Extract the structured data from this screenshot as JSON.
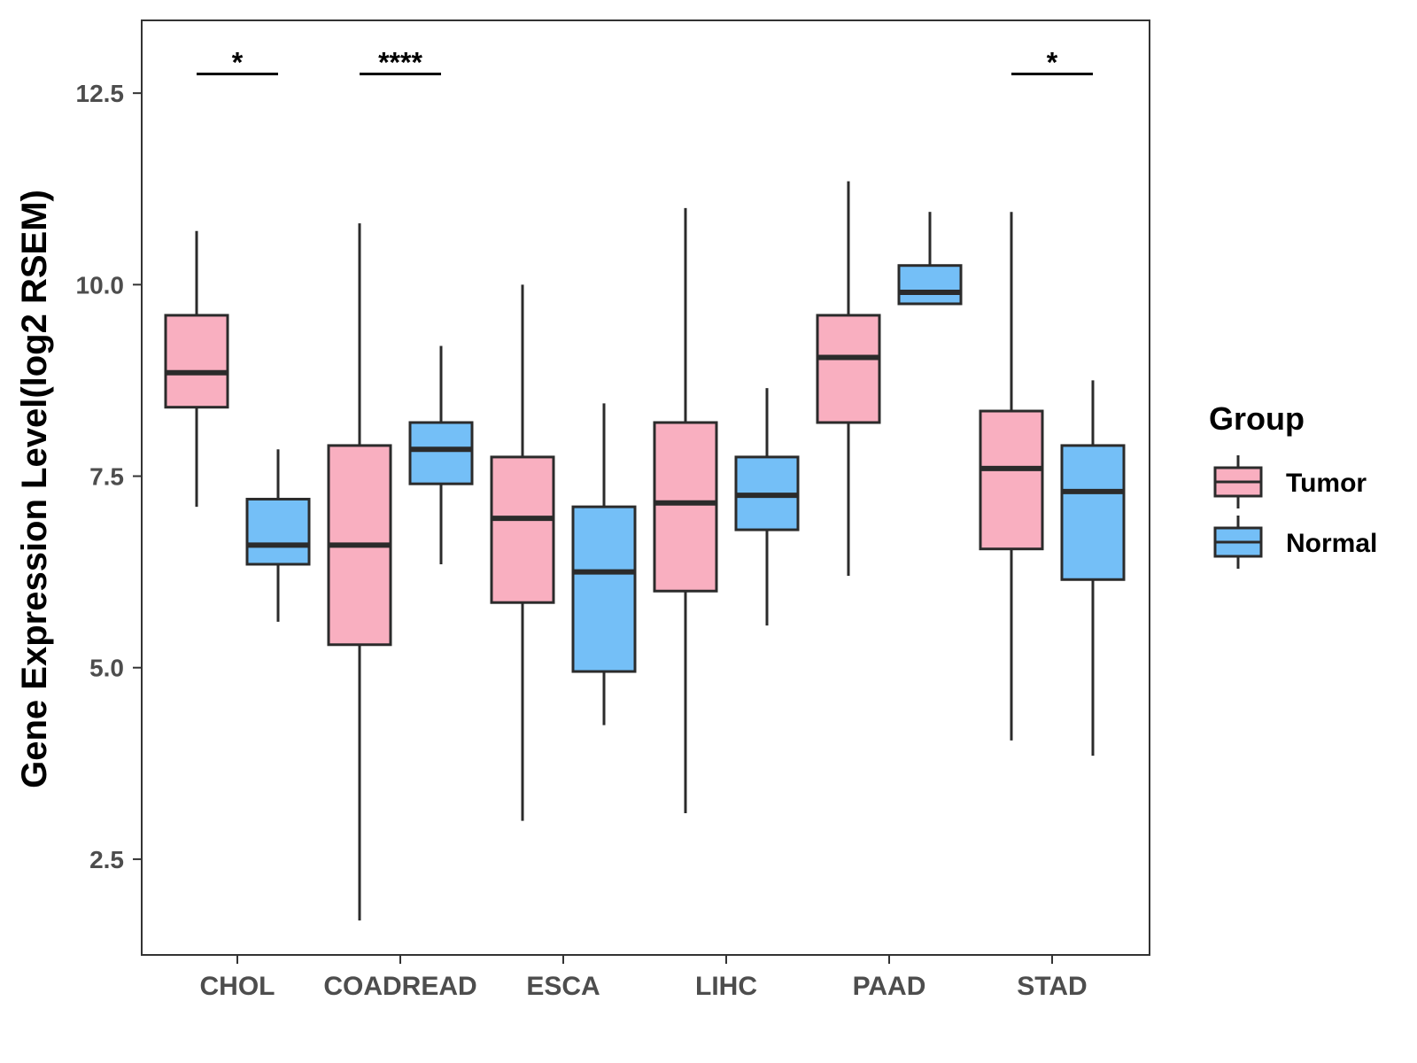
{
  "chart_data": {
    "type": "boxplot",
    "title": "",
    "xlabel": "",
    "ylabel": "Gene Expression Level(log2 RSEM)",
    "ylim": [
      1.25,
      13.45
    ],
    "yticks": [
      2.5,
      5.0,
      7.5,
      10.0,
      12.5
    ],
    "ytick_labels": [
      "2.5",
      "5.0",
      "7.5",
      "10.0",
      "12.5"
    ],
    "categories": [
      "CHOL",
      "COADREAD",
      "ESCA",
      "LIHC",
      "PAAD",
      "STAD"
    ],
    "legend": {
      "title": "Group",
      "position": "right",
      "entries": [
        "Tumor",
        "Normal"
      ]
    },
    "colors": {
      "Tumor": "#f9afc0",
      "Normal": "#74bff7",
      "outline": "#2b2b2b"
    },
    "series": [
      {
        "name": "Tumor",
        "boxes": [
          {
            "category": "CHOL",
            "min": 7.1,
            "q1": 8.4,
            "median": 8.85,
            "q3": 9.6,
            "max": 10.7
          },
          {
            "category": "COADREAD",
            "min": 1.7,
            "q1": 5.3,
            "median": 6.6,
            "q3": 7.9,
            "max": 10.8
          },
          {
            "category": "ESCA",
            "min": 3.0,
            "q1": 5.85,
            "median": 6.95,
            "q3": 7.75,
            "max": 10.0
          },
          {
            "category": "LIHC",
            "min": 3.1,
            "q1": 6.0,
            "median": 7.15,
            "q3": 8.2,
            "max": 11.0
          },
          {
            "category": "PAAD",
            "min": 6.2,
            "q1": 8.2,
            "median": 9.05,
            "q3": 9.6,
            "max": 11.35
          },
          {
            "category": "STAD",
            "min": 4.05,
            "q1": 6.55,
            "median": 7.6,
            "q3": 8.35,
            "max": 10.95
          }
        ]
      },
      {
        "name": "Normal",
        "boxes": [
          {
            "category": "CHOL",
            "min": 5.6,
            "q1": 6.35,
            "median": 6.6,
            "q3": 7.2,
            "max": 7.85
          },
          {
            "category": "COADREAD",
            "min": 6.35,
            "q1": 7.4,
            "median": 7.85,
            "q3": 8.2,
            "max": 9.2
          },
          {
            "category": "ESCA",
            "min": 4.25,
            "q1": 4.95,
            "median": 6.25,
            "q3": 7.1,
            "max": 8.45
          },
          {
            "category": "LIHC",
            "min": 5.55,
            "q1": 6.8,
            "median": 7.25,
            "q3": 7.75,
            "max": 8.65
          },
          {
            "category": "PAAD",
            "min": 9.75,
            "q1": 9.75,
            "median": 9.9,
            "q3": 10.25,
            "max": 10.95
          },
          {
            "category": "STAD",
            "min": 3.85,
            "q1": 6.15,
            "median": 7.3,
            "q3": 7.9,
            "max": 8.75
          }
        ]
      }
    ],
    "annotations": [
      {
        "category": "CHOL",
        "label": "*",
        "y": 12.75
      },
      {
        "category": "COADREAD",
        "label": "****",
        "y": 12.75
      },
      {
        "category": "STAD",
        "label": "*",
        "y": 12.75
      }
    ]
  }
}
